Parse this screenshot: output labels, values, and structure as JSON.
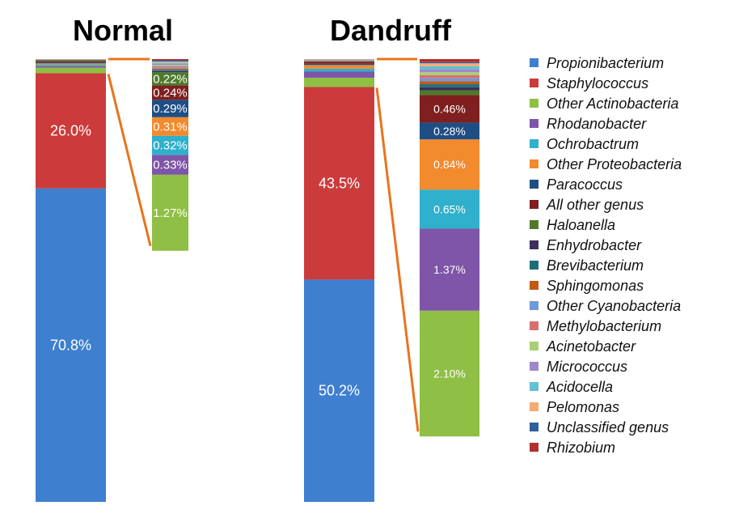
{
  "chart_data": {
    "type": "bar",
    "stacked": true,
    "titles": [
      "Normal",
      "Dandruff"
    ],
    "legend_position": "right",
    "series": [
      {
        "name": "Propionibacterium",
        "color": "#3f7fcf",
        "values": [
          70.8,
          50.2
        ],
        "labels": [
          "70.8%",
          "50.2%"
        ]
      },
      {
        "name": "Staphylococcus",
        "color": "#cc3b3b",
        "values": [
          26.0,
          43.5
        ],
        "labels": [
          "26.0%",
          "43.5%"
        ]
      },
      {
        "name": "Other Actinobacteria",
        "color": "#8fbf45",
        "values": [
          1.27,
          2.1
        ],
        "labels": [
          "1.27%",
          "2.10%"
        ]
      },
      {
        "name": "Rhodanobacter",
        "color": "#7e55a8",
        "values": [
          0.33,
          1.37
        ],
        "labels": [
          "0.33%",
          "1.37%"
        ]
      },
      {
        "name": "Ochrobactrum",
        "color": "#2fb0cc",
        "values": [
          0.32,
          0.65
        ],
        "labels": [
          "0.32%",
          "0.65%"
        ]
      },
      {
        "name": "Other Proteobacteria",
        "color": "#f28a2e",
        "values": [
          0.31,
          0.84
        ],
        "labels": [
          "0.31%",
          "0.84%"
        ]
      },
      {
        "name": "Paracoccus",
        "color": "#1f4e85",
        "values": [
          0.29,
          0.28
        ],
        "labels": [
          "0.29%",
          "0.28%"
        ]
      },
      {
        "name": "All other genus",
        "color": "#7f1f1f",
        "values": [
          0.24,
          0.46
        ],
        "labels": [
          "0.24%",
          "0.46%"
        ]
      },
      {
        "name": "Haloanella",
        "color": "#4e7a2a",
        "values": [
          0.22,
          0.08
        ],
        "labels": [
          "0.22%",
          ""
        ]
      },
      {
        "name": "Enhydrobacter",
        "color": "#3e2e5e",
        "values": [
          0.02,
          0.05
        ],
        "labels": [
          "",
          ""
        ]
      },
      {
        "name": "Brevibacterium",
        "color": "#1e6e7a",
        "values": [
          0.02,
          0.05
        ],
        "labels": [
          "",
          ""
        ]
      },
      {
        "name": "Sphingomonas",
        "color": "#c05a14",
        "values": [
          0.02,
          0.05
        ],
        "labels": [
          "",
          ""
        ]
      },
      {
        "name": "Other Cyanobacteria",
        "color": "#6f9ad8",
        "values": [
          0.02,
          0.05
        ],
        "labels": [
          "",
          ""
        ]
      },
      {
        "name": "Methylobacterium",
        "color": "#d86f6f",
        "values": [
          0.02,
          0.05
        ],
        "labels": [
          "",
          ""
        ]
      },
      {
        "name": "Acinetobacter",
        "color": "#a9cf74",
        "values": [
          0.02,
          0.05
        ],
        "labels": [
          "",
          ""
        ]
      },
      {
        "name": "Micrococcus",
        "color": "#9f89c8",
        "values": [
          0.02,
          0.05
        ],
        "labels": [
          "",
          ""
        ]
      },
      {
        "name": "Acidocella",
        "color": "#63c0d6",
        "values": [
          0.02,
          0.05
        ],
        "labels": [
          "",
          ""
        ]
      },
      {
        "name": "Pelomonas",
        "color": "#f7ab73",
        "values": [
          0.02,
          0.05
        ],
        "labels": [
          "",
          ""
        ]
      },
      {
        "name": "Unclassified genus",
        "color": "#2f5f9f",
        "values": [
          0.02,
          0.02
        ],
        "labels": [
          "",
          ""
        ]
      },
      {
        "name": "Rhizobium",
        "color": "#b03030",
        "values": [
          0.02,
          0.05
        ],
        "labels": [
          "",
          ""
        ]
      }
    ],
    "connector_color": "#e8741e"
  }
}
